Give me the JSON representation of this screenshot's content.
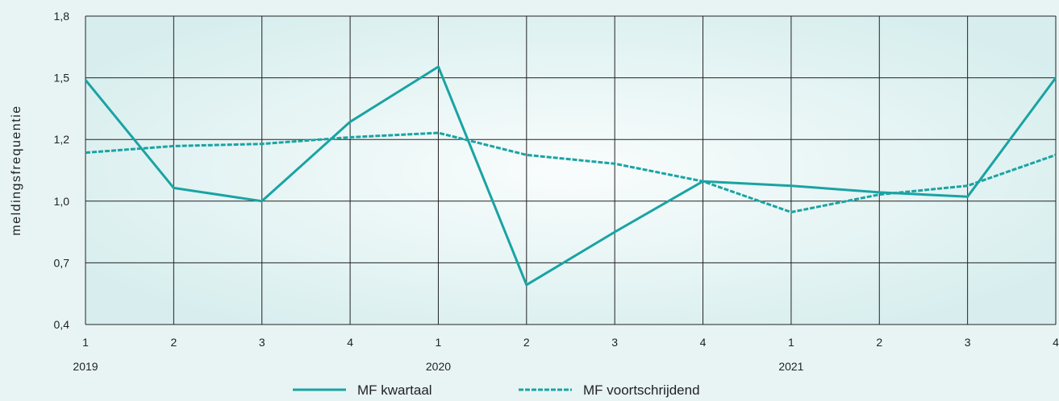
{
  "chart_data": {
    "type": "line",
    "ylabel": "meldingsfrequentie",
    "xlabel": "",
    "ylim": [
      0.4,
      1.8
    ],
    "yticks": [
      "0,4",
      "0,7",
      "1,0",
      "1,2",
      "1,5",
      "1,8"
    ],
    "categories": [
      "1",
      "2",
      "3",
      "4",
      "1",
      "2",
      "3",
      "4",
      "1",
      "2",
      "3",
      "4"
    ],
    "years": [
      {
        "label": "2019",
        "index": 0
      },
      {
        "label": "2020",
        "index": 4
      },
      {
        "label": "2021",
        "index": 8
      }
    ],
    "grid": true,
    "legend_position": "bottom",
    "series": [
      {
        "name": "MF kwartaal",
        "style": "solid",
        "color": "#1aa3a3",
        "values": [
          1.51,
          1.02,
          0.96,
          1.32,
          1.57,
          0.58,
          0.82,
          1.05,
          1.03,
          1.0,
          0.98,
          1.52
        ]
      },
      {
        "name": "MF voortschrijdend",
        "style": "dashed",
        "color": "#1aa3a3",
        "values": [
          1.18,
          1.21,
          1.22,
          1.25,
          1.27,
          1.17,
          1.13,
          1.05,
          0.91,
          0.99,
          1.03,
          1.17
        ]
      }
    ]
  },
  "colors": {
    "background": "#e8f4f4",
    "plot_band": "#d8eeee",
    "grid": "#222222",
    "line": "#1aa3a3"
  }
}
